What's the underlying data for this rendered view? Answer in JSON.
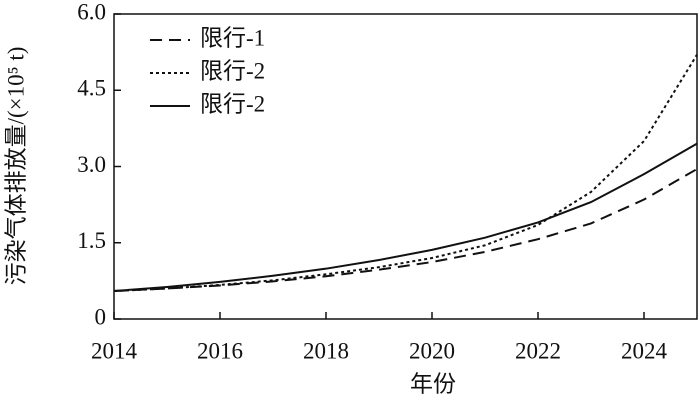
{
  "chart_data": {
    "type": "line",
    "x_label": "年份",
    "y_label": "污染气体排放量/(×10⁵ t)",
    "x": [
      2014,
      2015,
      2016,
      2017,
      2018,
      2019,
      2020,
      2021,
      2022,
      2023,
      2024,
      2025
    ],
    "series": [
      {
        "name": "限行-1",
        "color": "#111111",
        "dash": "dashed",
        "values": [
          0.55,
          0.6,
          0.66,
          0.74,
          0.84,
          0.97,
          1.12,
          1.32,
          1.57,
          1.88,
          2.35,
          2.95
        ]
      },
      {
        "name": "限行-2",
        "color": "#111111",
        "dash": "dotted",
        "values": [
          0.55,
          0.6,
          0.67,
          0.76,
          0.88,
          1.02,
          1.2,
          1.45,
          1.85,
          2.5,
          3.5,
          5.2
        ]
      },
      {
        "name": "限行-2",
        "color": "#111111",
        "dash": "solid",
        "values": [
          0.55,
          0.63,
          0.73,
          0.85,
          0.99,
          1.16,
          1.36,
          1.6,
          1.9,
          2.3,
          2.85,
          3.45
        ]
      }
    ],
    "xlim": [
      2014,
      2025
    ],
    "xticks": [
      2014,
      2016,
      2018,
      2020,
      2022,
      2024
    ],
    "ylim": [
      0,
      6
    ],
    "yticks": [
      0,
      1.5,
      {
        "value": 3,
        "label": "3.0"
      },
      4.5,
      {
        "value": 6,
        "label": "6.0"
      }
    ],
    "legend": "upper left"
  }
}
